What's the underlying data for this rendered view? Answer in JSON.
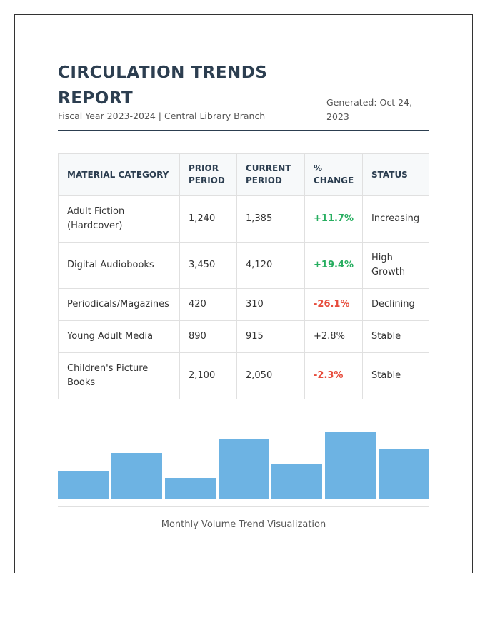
{
  "header": {
    "title": "CIRCULATION TRENDS REPORT",
    "subtitle": "Fiscal Year 2023-2024 | Central Library Branch",
    "generated": "Generated: Oct 24, 2023"
  },
  "table": {
    "columns": [
      "MATERIAL CATEGORY",
      "PRIOR PERIOD",
      "CURRENT PERIOD",
      "% CHANGE",
      "STATUS"
    ],
    "rows": [
      {
        "category": "Adult Fiction (Hardcover)",
        "prior": "1,240",
        "current": "1,385",
        "change": "+11.7%",
        "trend": "pos",
        "status": "Increasing"
      },
      {
        "category": "Digital Audiobooks",
        "prior": "3,450",
        "current": "4,120",
        "change": "+19.4%",
        "trend": "pos",
        "status": "High Growth"
      },
      {
        "category": "Periodicals/Magazines",
        "prior": "420",
        "current": "310",
        "change": "-26.1%",
        "trend": "neg",
        "status": "Declining"
      },
      {
        "category": "Young Adult Media",
        "prior": "890",
        "current": "915",
        "change": "+2.8%",
        "trend": "neutral",
        "status": "Stable"
      },
      {
        "category": "Children's Picture Books",
        "prior": "2,100",
        "current": "2,050",
        "change": "-2.3%",
        "trend": "neg",
        "status": "Stable"
      }
    ]
  },
  "chart_data": {
    "type": "bar",
    "values": [
      40,
      65,
      30,
      85,
      50,
      95,
      70
    ],
    "ylim": [
      0,
      100
    ],
    "color": "#6db3e3",
    "caption": "Monthly Volume Trend Visualization"
  },
  "colors": {
    "positive": "#27ae60",
    "negative": "#e74c3c",
    "heading": "#2c3e50"
  }
}
